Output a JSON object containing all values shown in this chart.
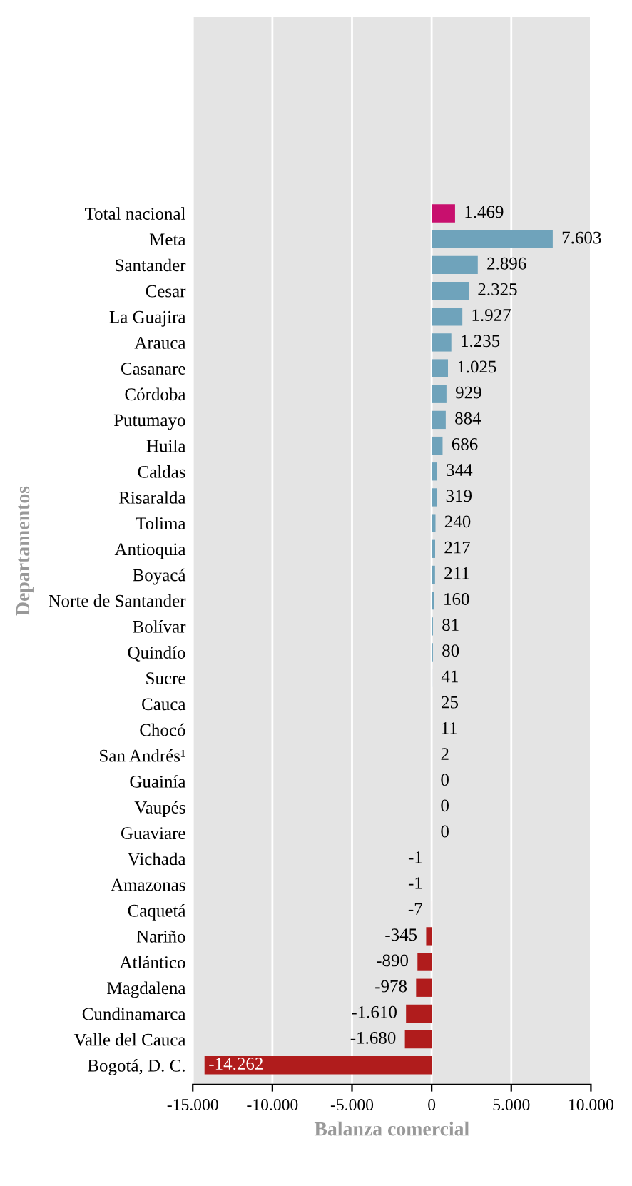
{
  "chart_data": {
    "type": "bar",
    "orientation": "horizontal",
    "xlabel": "Balanza comercial",
    "ylabel": "Departamentos",
    "categories": [
      "Total nacional",
      "Meta",
      "Santander",
      "Cesar",
      "La Guajira",
      "Arauca",
      "Casanare",
      "Córdoba",
      "Putumayo",
      "Huila",
      "Caldas",
      "Risaralda",
      "Tolima",
      "Antioquia",
      "Boyacá",
      "Norte de Santander",
      "Bolívar",
      "Quindío",
      "Sucre",
      "Cauca",
      "Chocó",
      "San Andrés¹",
      "Guainía",
      "Vaupés",
      "Guaviare",
      "Vichada",
      "Amazonas",
      "Caquetá",
      "Nariño",
      "Atlántico",
      "Magdalena",
      "Cundinamarca",
      "Valle del Cauca",
      "Bogotá, D. C."
    ],
    "values": [
      1469,
      7603,
      2896,
      2325,
      1927,
      1235,
      1025,
      929,
      884,
      686,
      344,
      319,
      240,
      217,
      211,
      160,
      81,
      80,
      41,
      25,
      11,
      2,
      0,
      0,
      0,
      -1,
      -1,
      -7,
      -345,
      -890,
      -978,
      -1610,
      -1680,
      -14262
    ],
    "value_labels": [
      "1.469",
      "7.603",
      "2.896",
      "2.325",
      "1.927",
      "1.235",
      "1.025",
      "929",
      "884",
      "686",
      "344",
      "319",
      "240",
      "217",
      "211",
      "160",
      "81",
      "80",
      "41",
      "25",
      "11",
      "2",
      "0",
      "0",
      "0",
      "-1",
      "-1",
      "-7",
      "-345",
      "-890",
      "-978",
      "-1.610",
      "-1.680",
      "-14.262"
    ],
    "colors": [
      "#c8106e",
      "#6fa3bb",
      "#6fa3bb",
      "#6fa3bb",
      "#6fa3bb",
      "#6fa3bb",
      "#6fa3bb",
      "#6fa3bb",
      "#6fa3bb",
      "#6fa3bb",
      "#6fa3bb",
      "#6fa3bb",
      "#6fa3bb",
      "#6fa3bb",
      "#6fa3bb",
      "#6fa3bb",
      "#6fa3bb",
      "#6fa3bb",
      "#6fa3bb",
      "#6fa3bb",
      "#6fa3bb",
      "#6fa3bb",
      "#6fa3bb",
      "#6fa3bb",
      "#b01c1c",
      "#b01c1c",
      "#b01c1c",
      "#b01c1c",
      "#b01c1c",
      "#b01c1c",
      "#b01c1c",
      "#b01c1c",
      "#b01c1c",
      "#b01c1c"
    ],
    "xlim": [
      -15000,
      10000
    ],
    "xticks": [
      {
        "value": -15000,
        "label": "-15.000"
      },
      {
        "value": -10000,
        "label": "-10.000"
      },
      {
        "value": -5000,
        "label": "-5.000"
      },
      {
        "value": 0,
        "label": "0"
      },
      {
        "value": 5000,
        "label": "5.000"
      },
      {
        "value": 10000,
        "label": "10.000"
      }
    ],
    "grid": "x"
  }
}
